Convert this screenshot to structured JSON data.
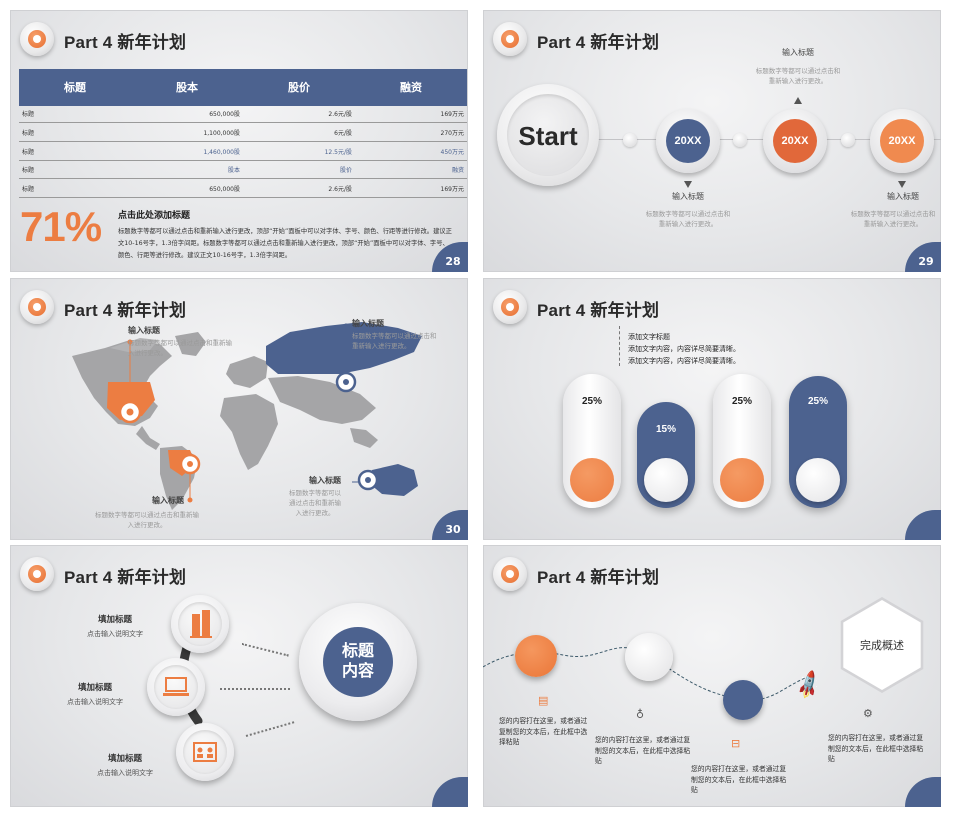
{
  "header_title": "Part 4 新年计划",
  "colors": {
    "accent": "#ec7d42",
    "brand_blue": "#4c628f"
  },
  "slide1": {
    "page": "28",
    "table": {
      "headers": [
        "标题",
        "股本",
        "股价",
        "融资"
      ],
      "rows": [
        [
          "标题",
          "650,000股",
          "2.6元/股",
          "169万元"
        ],
        [
          "标题",
          "1,100,000股",
          "6元/股",
          "270万元"
        ],
        [
          "标题",
          "1,460,000股",
          "12.5元/股",
          "450万元"
        ],
        [
          "标题",
          "股本",
          "股价",
          "融资"
        ],
        [
          "标题",
          "650,000股",
          "2.6元/股",
          "169万元"
        ]
      ]
    },
    "percent": "71%",
    "title": "点击此处添加标题",
    "body": "标题数字等都可以通过点击和重新输入进行更改，顶部“开始”面板中可以对字体、字号、颜色、行距等进行修改。建议正文10-16号字，1.3倍字间距。标题数字等都可以通过点击和重新输入进行更改，顶部“开始”面板中可以对字体、字号、颜色、行距等进行修改。建议正文10-16号字，1.3倍字间距。"
  },
  "slide2": {
    "page": "29",
    "start": "Start",
    "nodes": [
      "20XX",
      "20XX",
      "20XX"
    ],
    "top_label": "输入标题",
    "top_desc1": "标题数字等都可以通过点击和",
    "top_desc2": "重新输入进行更改。",
    "left_label": "输入标题",
    "left_desc1": "标题数字等都可以通过点击和",
    "left_desc2": "重新输入进行更改。",
    "right_label": "输入标题",
    "right_desc1": "标题数字等都可以通过点击和",
    "right_desc2": "重新输入进行更改。"
  },
  "slide3": {
    "page": "30",
    "na_label": "输入标题",
    "na_desc1": "标题数字等都可以通过点击和重新输",
    "na_desc2": "入进行更改。",
    "ru_label": "输入标题",
    "ru_desc1": "标题数字等都可以通过点击和",
    "ru_desc2": "重新输入进行更改。",
    "sa_label": "输入标题",
    "sa_desc1": "标题数字等都可以通过点击和重新输",
    "sa_desc2": "入进行更改。",
    "au_label": "输入标题",
    "au_desc1": "标题数字等都可以",
    "au_desc2": "通过点击和重新输",
    "au_desc3": "入进行更改。"
  },
  "slide4": {
    "note_title": "添加文字标题",
    "note_line1": "添加文字内容，内容详尽简要清晰。",
    "note_line2": "添加文字内容，内容详尽简要清晰。",
    "bars": [
      {
        "value": "25%",
        "style": "white"
      },
      {
        "value": "15%",
        "style": "blue"
      },
      {
        "value": "25%",
        "style": "white"
      },
      {
        "value": "25%",
        "style": "blue"
      }
    ]
  },
  "slide5": {
    "items": [
      {
        "title": "填加标题",
        "sub": "点击输入说明文字",
        "icon": "building-icon"
      },
      {
        "title": "填加标题",
        "sub": "点击输入说明文字",
        "icon": "laptop-icon"
      },
      {
        "title": "填加标题",
        "sub": "点击输入说明文字",
        "icon": "id-card-icon"
      }
    ],
    "center_line1": "标题",
    "center_line2": "内容"
  },
  "slide6": {
    "hex_label": "完成概述",
    "texts": [
      "您的内容打在这里，或者通过复制您的文本后，在此框中选择粘贴",
      "您的内容打在这里，或者通过复制您的文本后，在此框中选择粘贴",
      "您的内容打在这里，或者通过复制您的文本后，在此框中选择粘贴",
      "您的内容打在这里，或者通过复制您的文本后，在此框中选择粘贴"
    ]
  }
}
